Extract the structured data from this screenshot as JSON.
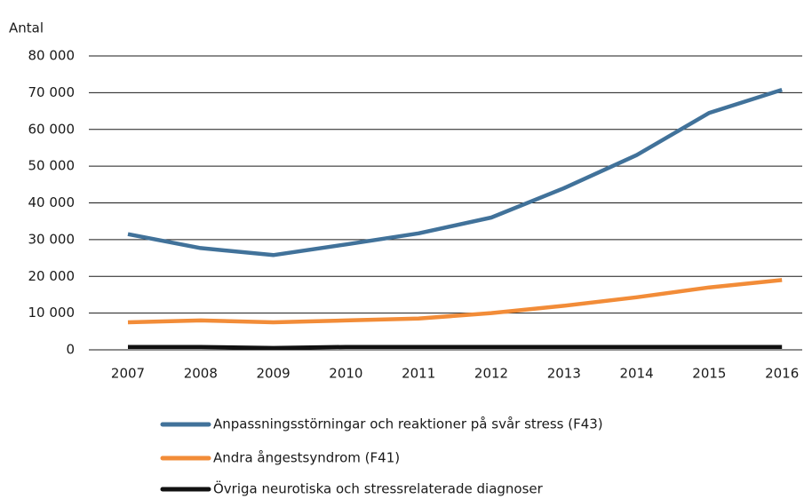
{
  "chart_data": {
    "type": "line",
    "y_label": "Antal",
    "categories": [
      "2007",
      "2008",
      "2009",
      "2010",
      "2011",
      "2012",
      "2013",
      "2014",
      "2015",
      "2016"
    ],
    "series": [
      {
        "name": "Anpassningsstörningar och reaktioner på svår stress (F43)",
        "color": "#41729a",
        "values": [
          31500,
          27700,
          25800,
          28700,
          31700,
          36000,
          44000,
          53000,
          64500,
          70800
        ]
      },
      {
        "name": "Andra ångestsyndrom (F41)",
        "color": "#f28c38",
        "values": [
          7500,
          8000,
          7500,
          8000,
          8500,
          10000,
          12000,
          14300,
          17000,
          19000
        ]
      },
      {
        "name": "Övriga neurotiska och stressrelaterade diagnoser",
        "color": "#111111",
        "values": [
          800,
          800,
          500,
          800,
          800,
          800,
          800,
          800,
          800,
          800
        ]
      }
    ],
    "ylim": [
      0,
      80000
    ],
    "yticks": [
      0,
      {
        "value": 10000,
        "label": "10 000"
      },
      {
        "value": 20000,
        "label": "20 000"
      },
      {
        "value": 30000,
        "label": "30 000"
      },
      {
        "value": 40000,
        "label": "40 000"
      },
      {
        "value": 50000,
        "label": "50 000"
      },
      {
        "value": 60000,
        "label": "60 000"
      },
      {
        "value": 70000,
        "label": "70 000"
      },
      {
        "value": 80000,
        "label": "80 000"
      }
    ],
    "grid": true,
    "legend": "bottom"
  }
}
